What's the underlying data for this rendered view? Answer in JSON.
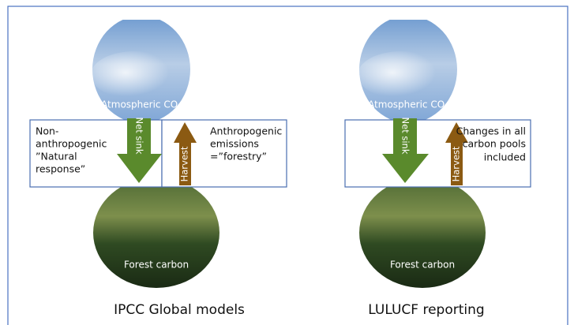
{
  "panels": [
    {
      "atmosphere": "Atmospheric CO₂",
      "sink_arrow": "Net sink",
      "harvest_arrow": "Harvest",
      "left_box_lines": [
        "Non-",
        "anthropogenic",
        "”Natural",
        "response”"
      ],
      "right_box_lines": [
        "Anthropogenic",
        "emissions",
        "=”forestry”"
      ],
      "forest": "Forest carbon",
      "caption": "IPCC Global models"
    },
    {
      "atmosphere": "Atmospheric CO₂",
      "sink_arrow": "Net sink",
      "harvest_arrow": "Harvest",
      "box_lines": [
        "Changes in all",
        "carbon pools",
        "included"
      ],
      "forest": "Forest carbon",
      "caption": "LULUCF reporting"
    }
  ]
}
